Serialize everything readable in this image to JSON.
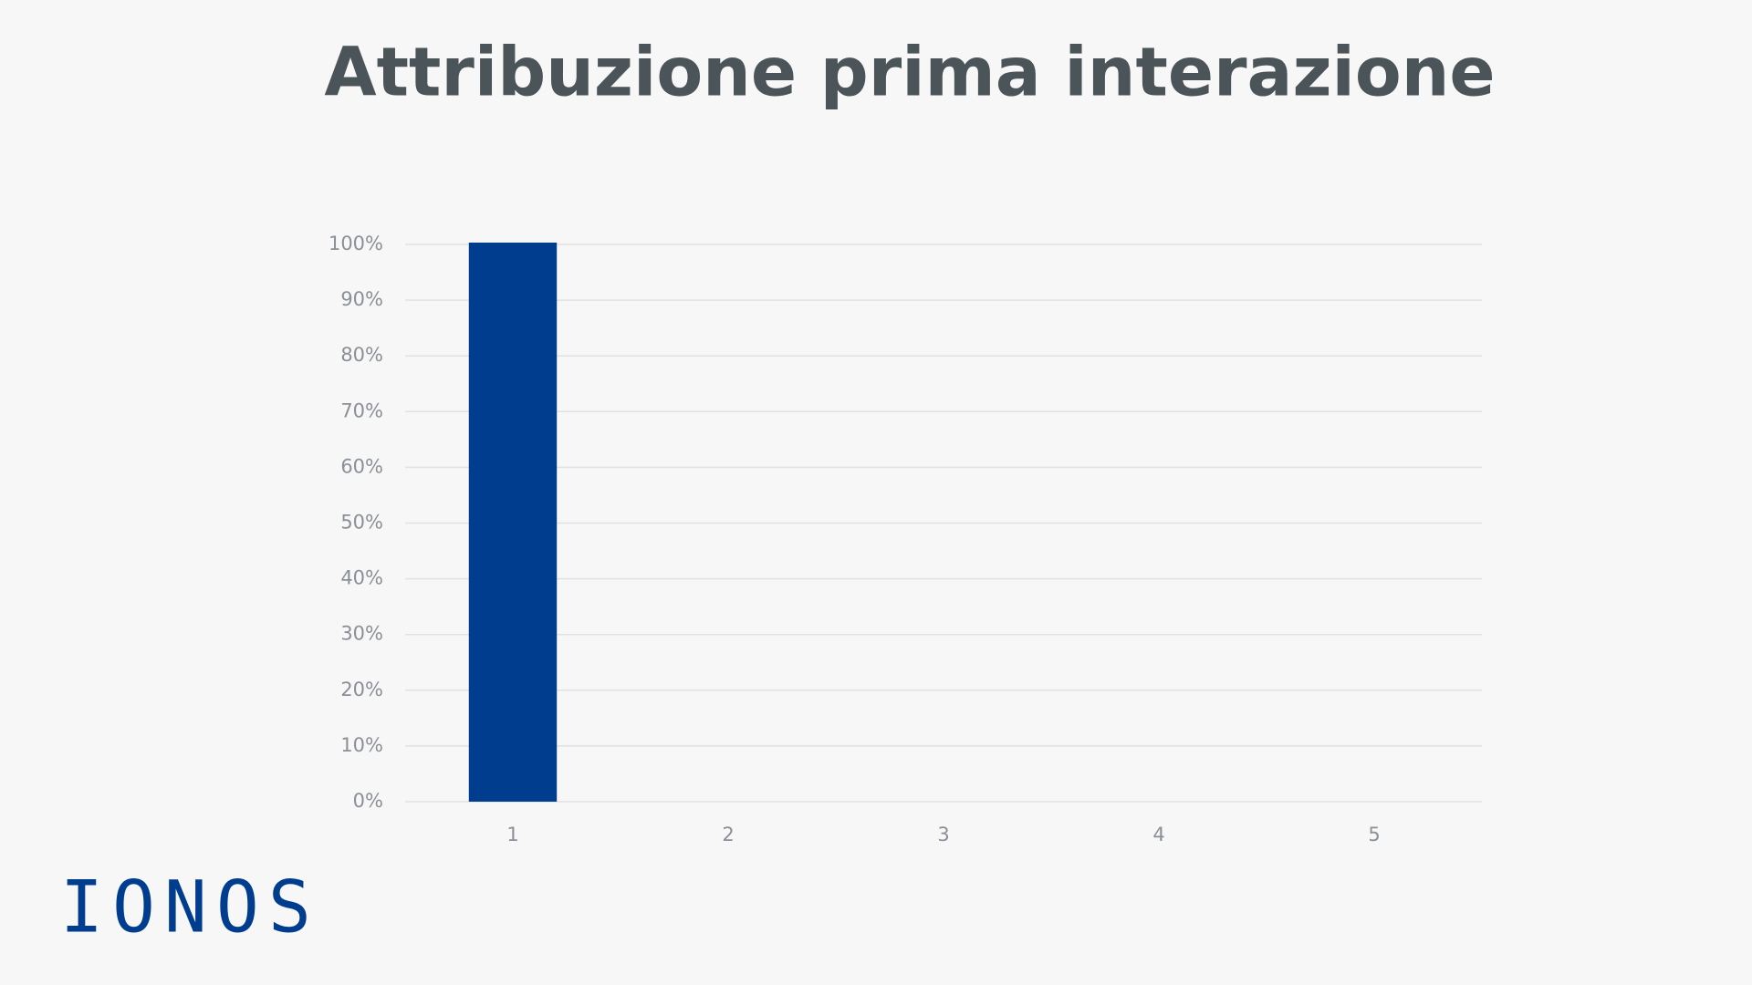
{
  "chart_data": {
    "type": "bar",
    "title": "Attribuzione prima interazione",
    "categories": [
      "1",
      "2",
      "3",
      "4",
      "5"
    ],
    "values": [
      100,
      0,
      0,
      0,
      0
    ],
    "color": "#003d8f",
    "ylim": [
      0,
      100
    ],
    "yticks": [
      {
        "value": 0,
        "label": "0%"
      },
      {
        "value": 10,
        "label": "10%"
      },
      {
        "value": 20,
        "label": "20%"
      },
      {
        "value": 30,
        "label": "30%"
      },
      {
        "value": 40,
        "label": "40%"
      },
      {
        "value": 50,
        "label": "50%"
      },
      {
        "value": 60,
        "label": "60%"
      },
      {
        "value": 70,
        "label": "70%"
      },
      {
        "value": 80,
        "label": "80%"
      },
      {
        "value": 90,
        "label": "90%"
      },
      {
        "value": 100,
        "label": "100%"
      }
    ],
    "grid": true
  },
  "logo": "IONOS"
}
